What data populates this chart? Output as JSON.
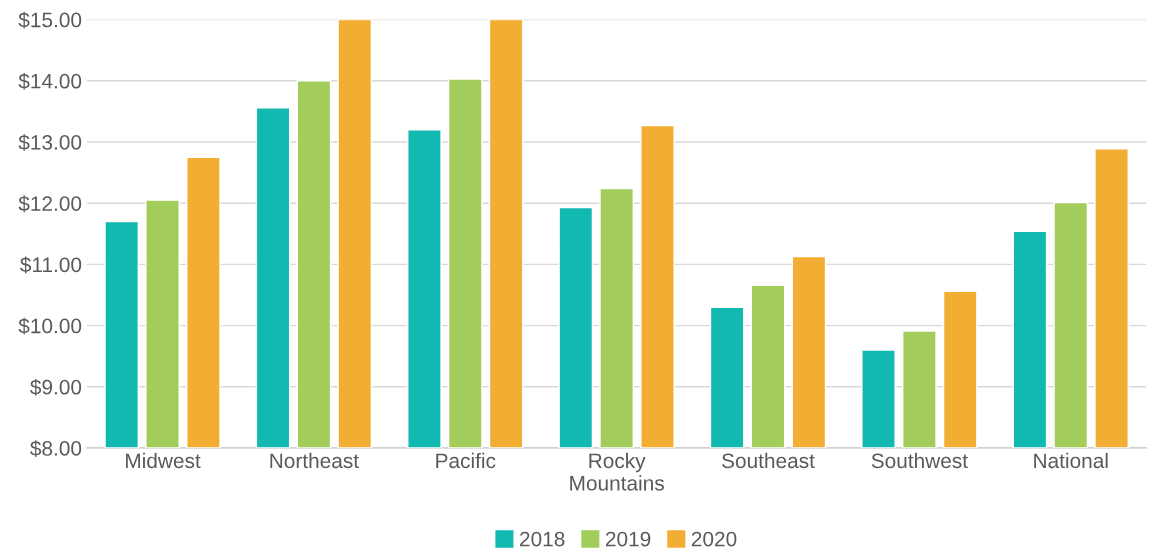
{
  "chart_data": {
    "type": "bar",
    "categories": [
      "Midwest",
      "Northeast",
      "Pacific",
      "Rocky\nMountains",
      "Southeast",
      "Southwest",
      "National"
    ],
    "series": [
      {
        "name": "2018",
        "color": "#12b9b0",
        "values": [
          11.7,
          13.56,
          13.2,
          11.93,
          10.3,
          9.6,
          11.54
        ]
      },
      {
        "name": "2019",
        "color": "#a2cd5a",
        "values": [
          12.05,
          14.0,
          14.03,
          12.24,
          10.66,
          9.91,
          12.01
        ]
      },
      {
        "name": "2020",
        "color": "#f2ae33",
        "values": [
          12.75,
          15.0,
          15.0,
          13.27,
          11.13,
          10.56,
          12.89
        ]
      }
    ],
    "ylim": [
      8,
      15
    ],
    "yticks": [
      {
        "value": 8,
        "label": "$8.00"
      },
      {
        "value": 9,
        "label": "$9.00"
      },
      {
        "value": 10,
        "label": "$10.00"
      },
      {
        "value": 11,
        "label": "$11.00"
      },
      {
        "value": 12,
        "label": "$12.00"
      },
      {
        "value": 13,
        "label": "$13.00"
      },
      {
        "value": 14,
        "label": "$14.00"
      },
      {
        "value": 15,
        "label": "$15.00"
      }
    ],
    "grid": "y",
    "legend": "bottom"
  }
}
